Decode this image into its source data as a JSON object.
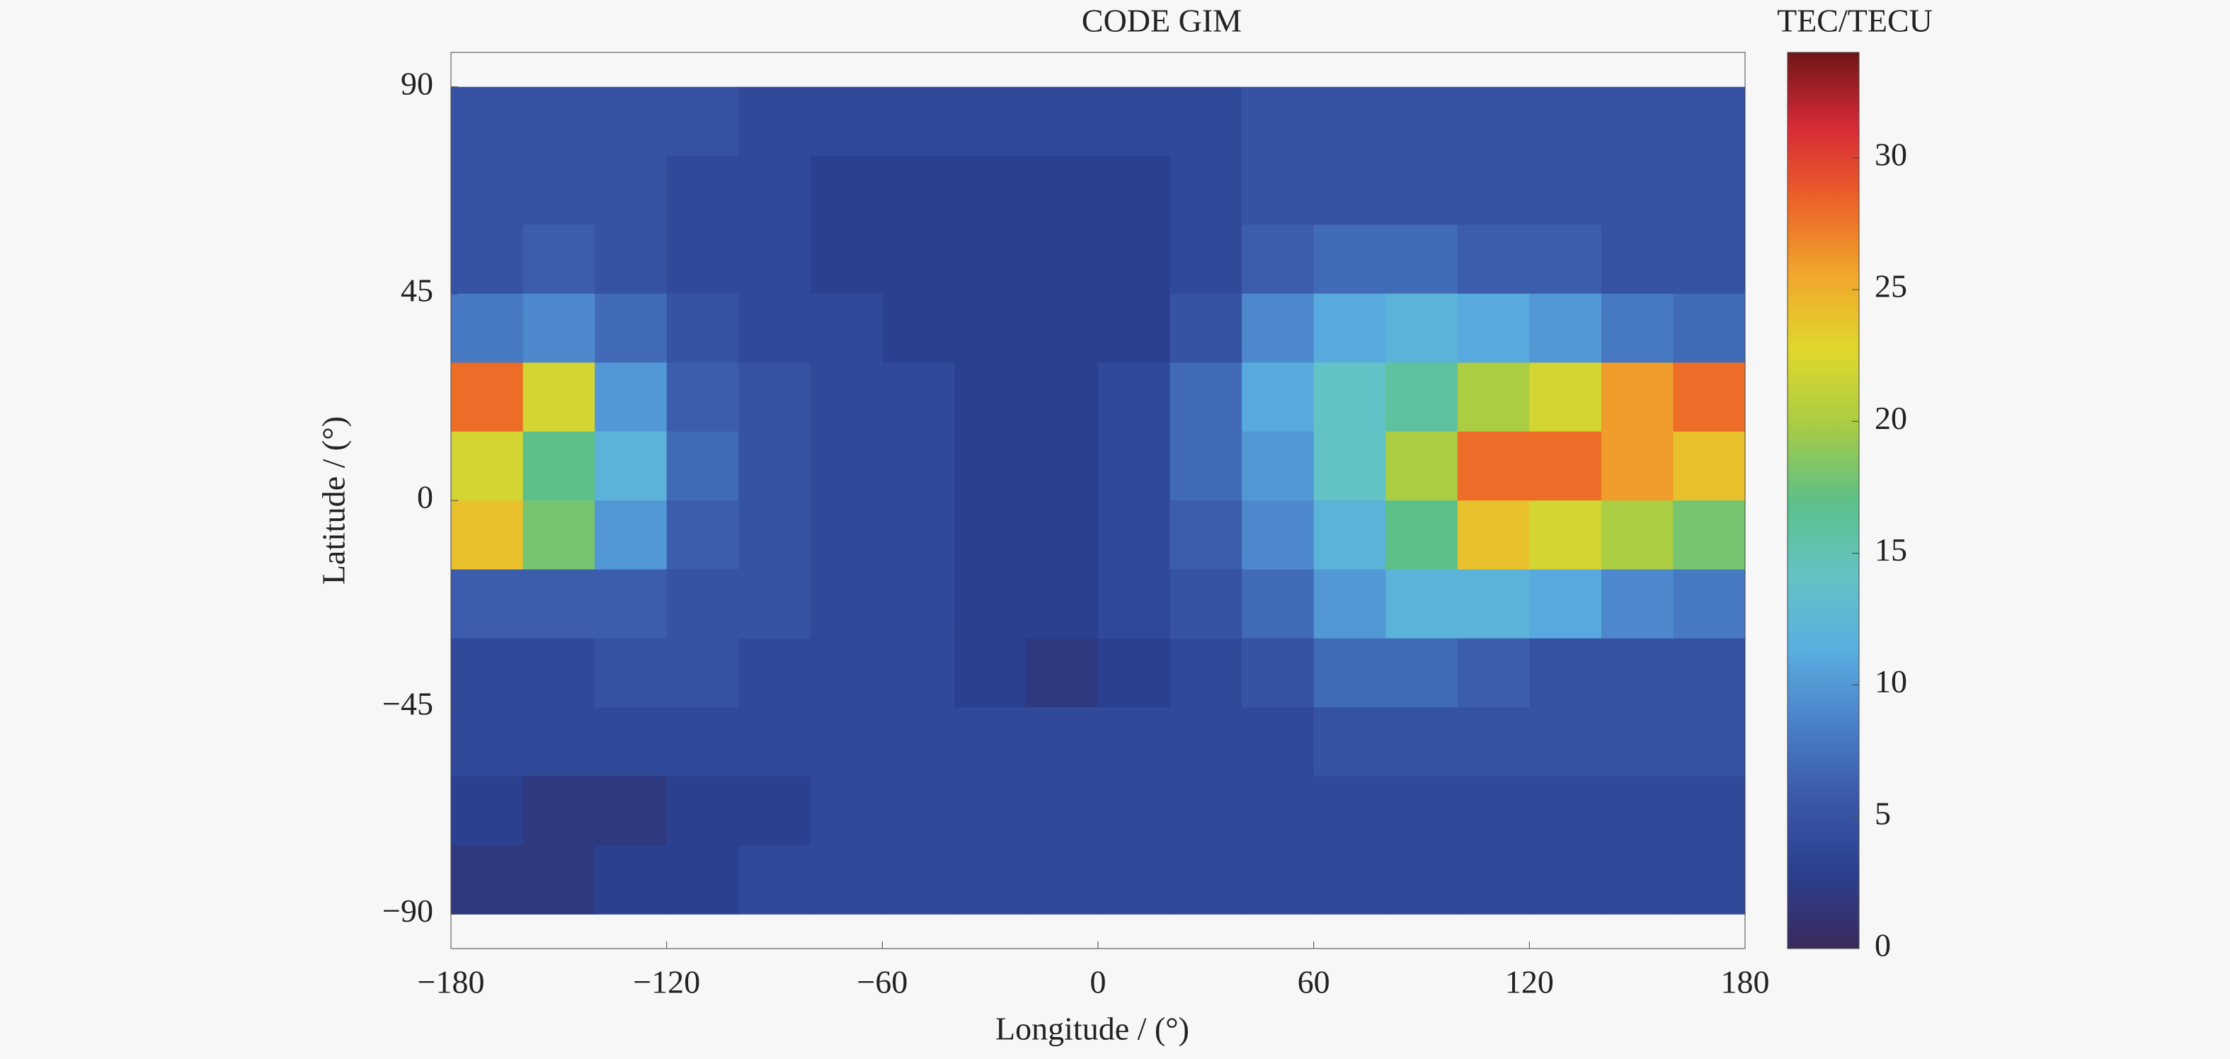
{
  "chart_data": {
    "type": "heatmap",
    "title": "CODE GIM",
    "colorbar_label": "TEC/TECU",
    "xlabel": "Longitude / (°)",
    "ylabel": "Latitude / (°)",
    "x": [
      -170,
      -150,
      -130,
      -110,
      -90,
      -70,
      -50,
      -30,
      -10,
      10,
      30,
      50,
      70,
      90,
      110,
      130,
      150,
      170
    ],
    "y": [
      82.5,
      67.5,
      52.5,
      37.5,
      22.5,
      7.5,
      -7.5,
      -22.5,
      -37.5,
      -52.5,
      -67.5,
      -82.5
    ],
    "z": [
      [
        5,
        5,
        5,
        5,
        4,
        4,
        4,
        4,
        4,
        4,
        4,
        5,
        5,
        5,
        5,
        5,
        5,
        5
      ],
      [
        5,
        5,
        5,
        4,
        4,
        3,
        3,
        3,
        3,
        3,
        4,
        5,
        5,
        5,
        5,
        5,
        5,
        5
      ],
      [
        5,
        6,
        5,
        4,
        4,
        3,
        3,
        3,
        3,
        3,
        4,
        6,
        7,
        7,
        6,
        6,
        5,
        5
      ],
      [
        8,
        9,
        7,
        5,
        4,
        4,
        3,
        3,
        3,
        3,
        5,
        9,
        11,
        12,
        11,
        10,
        8,
        7
      ],
      [
        28,
        22,
        10,
        6,
        5,
        4,
        4,
        3,
        3,
        4,
        7,
        11,
        14,
        16,
        20,
        22,
        26,
        28
      ],
      [
        22,
        17,
        12,
        7,
        5,
        4,
        4,
        3,
        3,
        4,
        7,
        10,
        14,
        20,
        28,
        28,
        26,
        24
      ],
      [
        24,
        18,
        10,
        6,
        5,
        4,
        4,
        3,
        3,
        4,
        6,
        9,
        12,
        17,
        24,
        22,
        20,
        18
      ],
      [
        6,
        6,
        6,
        5,
        5,
        4,
        4,
        3,
        3,
        4,
        5,
        7,
        10,
        12,
        12,
        11,
        9,
        8
      ],
      [
        4,
        4,
        5,
        5,
        4,
        4,
        4,
        3,
        2,
        3,
        4,
        5,
        7,
        7,
        6,
        5,
        5,
        5
      ],
      [
        4,
        4,
        4,
        4,
        4,
        4,
        4,
        4,
        4,
        4,
        4,
        4,
        5,
        5,
        5,
        5,
        5,
        5
      ],
      [
        3,
        2,
        2,
        3,
        3,
        4,
        4,
        4,
        4,
        4,
        4,
        4,
        4,
        4,
        4,
        4,
        4,
        4
      ],
      [
        2,
        2,
        3,
        3,
        4,
        4,
        4,
        4,
        4,
        4,
        4,
        4,
        4,
        4,
        4,
        4,
        4,
        4
      ]
    ],
    "xlim": [
      -180,
      180
    ],
    "xticks": [
      {
        "value": -180,
        "label": "−180"
      },
      {
        "value": -120,
        "label": "−120"
      },
      {
        "value": -60,
        "label": "−60"
      },
      0,
      60,
      120,
      180
    ],
    "ylim": [
      -97.5,
      97.5
    ],
    "yticks": [
      {
        "value": -90,
        "label": "−90"
      },
      {
        "value": -45,
        "label": "−45"
      },
      0,
      45,
      90
    ],
    "clim": [
      0,
      34
    ],
    "cticks": [
      0,
      5,
      10,
      15,
      20,
      25,
      30
    ],
    "colormap": [
      "#3a2a5c",
      "#2b3f8e",
      "#3a58a8",
      "#4a80c8",
      "#5aaee0",
      "#64c3c4",
      "#5dc088",
      "#a8cc44",
      "#e0d82c",
      "#f0a82c",
      "#ec6428",
      "#d82a38",
      "#6e1616"
    ]
  }
}
